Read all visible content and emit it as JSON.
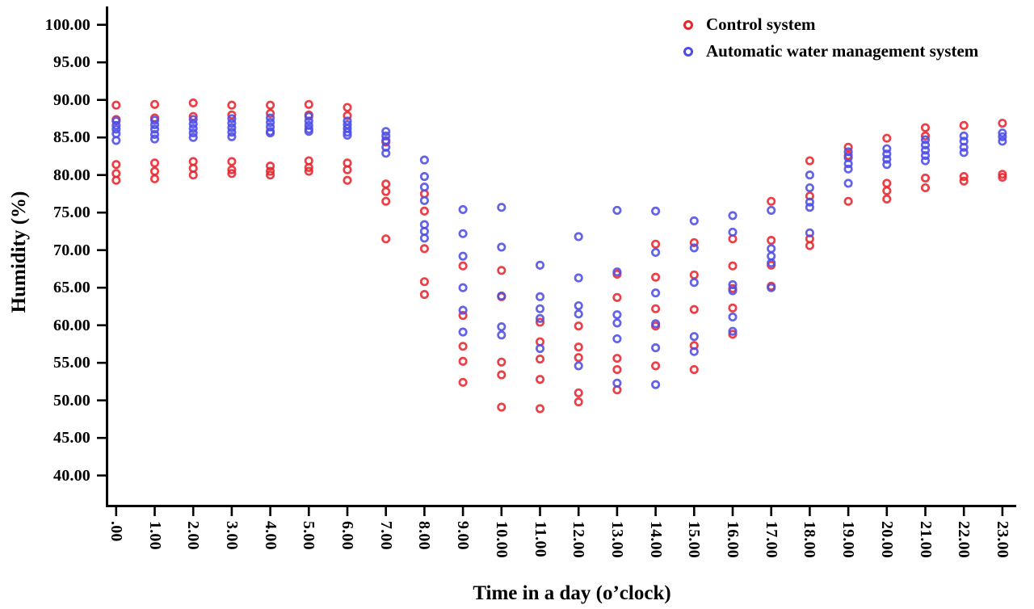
{
  "legend": {
    "items": [
      {
        "label": "Control system",
        "marker": "circle-outline-icon",
        "color": "#e8252d"
      },
      {
        "label": "Automatic water management system",
        "marker": "circle-outline-icon",
        "color": "#4d4de6"
      }
    ]
  },
  "axes": {
    "y": {
      "title": "Humidity (%)",
      "min": 40,
      "max": 100,
      "tick_values": [
        40,
        45,
        50,
        55,
        60,
        65,
        70,
        75,
        80,
        85,
        90,
        95,
        100
      ],
      "tick_labels": [
        "40.00",
        "45.00",
        "50.00",
        "55.00",
        "60.00",
        "65.00",
        "70.00",
        "75.00",
        "80.00",
        "85.00",
        "90.00",
        "95.00",
        "100.00"
      ]
    },
    "x": {
      "title": "Time in a day (o’clock)",
      "tick_labels": [
        ".00",
        "1.00",
        "2.00",
        "3.00",
        "4.00",
        "5.00",
        "6.00",
        "7.00",
        "8.00",
        "9.00",
        "10.00",
        "11.00",
        "12.00",
        "13.00",
        "14.00",
        "15.00",
        "16.00",
        "17.00",
        "18.00",
        "19.00",
        "20.00",
        "21.00",
        "22.00",
        "23.00"
      ]
    }
  },
  "chart_data": {
    "type": "scatter",
    "title": "",
    "xlabel": "Time in a day (o’clock)",
    "ylabel": "Humidity (%)",
    "ylim": [
      40,
      100
    ],
    "y_tick_step": 5,
    "grid": false,
    "legend_position": "top-right",
    "marker_style": "hollow-circle",
    "x_categories_hours": [
      0,
      1,
      2,
      3,
      4,
      5,
      6,
      7,
      8,
      9,
      10,
      11,
      12,
      13,
      14,
      15,
      16,
      17,
      18,
      19,
      20,
      21,
      22,
      23
    ],
    "series": [
      {
        "name": "Control system",
        "color": "#e8252d",
        "points": [
          [
            0,
            89.3
          ],
          [
            0,
            87.4
          ],
          [
            0,
            81.4
          ],
          [
            0,
            80.2
          ],
          [
            0,
            79.3
          ],
          [
            1,
            89.4
          ],
          [
            1,
            87.6
          ],
          [
            1,
            81.6
          ],
          [
            1,
            80.5
          ],
          [
            1,
            79.5
          ],
          [
            2,
            89.6
          ],
          [
            2,
            87.8
          ],
          [
            2,
            81.8
          ],
          [
            2,
            80.9
          ],
          [
            2,
            80.0
          ],
          [
            3,
            89.3
          ],
          [
            3,
            88.0
          ],
          [
            3,
            81.8
          ],
          [
            3,
            80.7
          ],
          [
            3,
            80.2
          ],
          [
            4,
            89.3
          ],
          [
            4,
            88.2
          ],
          [
            4,
            81.2
          ],
          [
            4,
            80.5
          ],
          [
            4,
            80.0
          ],
          [
            5,
            89.4
          ],
          [
            5,
            88.0
          ],
          [
            5,
            81.9
          ],
          [
            5,
            81.0
          ],
          [
            5,
            80.5
          ],
          [
            6,
            89.0
          ],
          [
            6,
            87.9
          ],
          [
            6,
            81.6
          ],
          [
            6,
            80.7
          ],
          [
            6,
            79.3
          ],
          [
            7,
            84.4
          ],
          [
            7,
            78.8
          ],
          [
            7,
            77.8
          ],
          [
            7,
            76.5
          ],
          [
            7,
            71.5
          ],
          [
            8,
            77.5
          ],
          [
            8,
            75.2
          ],
          [
            8,
            70.2
          ],
          [
            8,
            65.8
          ],
          [
            8,
            64.1
          ],
          [
            9,
            67.9
          ],
          [
            9,
            61.3
          ],
          [
            9,
            57.2
          ],
          [
            9,
            55.2
          ],
          [
            9,
            52.4
          ],
          [
            10,
            67.3
          ],
          [
            10,
            63.8
          ],
          [
            10,
            55.1
          ],
          [
            10,
            53.4
          ],
          [
            10,
            49.1
          ],
          [
            11,
            60.4
          ],
          [
            11,
            57.8
          ],
          [
            11,
            55.5
          ],
          [
            11,
            52.8
          ],
          [
            11,
            48.9
          ],
          [
            12,
            59.9
          ],
          [
            12,
            57.1
          ],
          [
            12,
            55.7
          ],
          [
            12,
            51.0
          ],
          [
            12,
            49.8
          ],
          [
            13,
            66.8
          ],
          [
            13,
            63.7
          ],
          [
            13,
            55.6
          ],
          [
            13,
            54.1
          ],
          [
            13,
            51.4
          ],
          [
            14,
            70.8
          ],
          [
            14,
            66.4
          ],
          [
            14,
            62.2
          ],
          [
            14,
            59.9
          ],
          [
            14,
            54.6
          ],
          [
            15,
            71.0
          ],
          [
            15,
            66.7
          ],
          [
            15,
            62.1
          ],
          [
            15,
            57.3
          ],
          [
            15,
            54.1
          ],
          [
            16,
            71.5
          ],
          [
            16,
            67.9
          ],
          [
            16,
            64.9
          ],
          [
            16,
            62.3
          ],
          [
            16,
            58.8
          ],
          [
            17,
            76.5
          ],
          [
            17,
            71.3
          ],
          [
            17,
            68.0
          ],
          [
            17,
            65.2
          ],
          [
            18,
            81.9
          ],
          [
            18,
            77.2
          ],
          [
            18,
            71.5
          ],
          [
            18,
            70.6
          ],
          [
            19,
            83.7
          ],
          [
            19,
            82.6
          ],
          [
            19,
            76.5
          ],
          [
            20,
            84.9
          ],
          [
            20,
            78.9
          ],
          [
            20,
            77.9
          ],
          [
            20,
            76.8
          ],
          [
            21,
            86.3
          ],
          [
            21,
            85.2
          ],
          [
            21,
            79.6
          ],
          [
            21,
            78.3
          ],
          [
            22,
            86.6
          ],
          [
            22,
            79.8
          ],
          [
            22,
            79.2
          ],
          [
            23,
            86.9
          ],
          [
            23,
            80.1
          ],
          [
            23,
            79.7
          ]
        ]
      },
      {
        "name": "Automatic water management system",
        "color": "#4d4de6",
        "points": [
          [
            0,
            87.2
          ],
          [
            0,
            86.6
          ],
          [
            0,
            86.1
          ],
          [
            0,
            85.5
          ],
          [
            0,
            84.6
          ],
          [
            1,
            87.3
          ],
          [
            1,
            86.7
          ],
          [
            1,
            86.1
          ],
          [
            1,
            85.4
          ],
          [
            1,
            84.8
          ],
          [
            2,
            87.4
          ],
          [
            2,
            86.8
          ],
          [
            2,
            86.2
          ],
          [
            2,
            85.6
          ],
          [
            2,
            85.0
          ],
          [
            3,
            87.5
          ],
          [
            3,
            86.9
          ],
          [
            3,
            86.3
          ],
          [
            3,
            85.7
          ],
          [
            3,
            85.1
          ],
          [
            4,
            87.6
          ],
          [
            4,
            87.0
          ],
          [
            4,
            86.4
          ],
          [
            4,
            85.8
          ],
          [
            4,
            85.6
          ],
          [
            5,
            87.8
          ],
          [
            5,
            87.2
          ],
          [
            5,
            86.6
          ],
          [
            5,
            86.1
          ],
          [
            5,
            85.8
          ],
          [
            6,
            87.2
          ],
          [
            6,
            86.7
          ],
          [
            6,
            86.2
          ],
          [
            6,
            85.7
          ],
          [
            6,
            85.3
          ],
          [
            7,
            85.8
          ],
          [
            7,
            85.2
          ],
          [
            7,
            84.6
          ],
          [
            7,
            83.7
          ],
          [
            7,
            82.9
          ],
          [
            8,
            82.0
          ],
          [
            8,
            79.8
          ],
          [
            8,
            78.4
          ],
          [
            8,
            76.6
          ],
          [
            8,
            73.4
          ],
          [
            8,
            72.5
          ],
          [
            8,
            71.6
          ],
          [
            9,
            75.4
          ],
          [
            9,
            72.2
          ],
          [
            9,
            69.2
          ],
          [
            9,
            65.0
          ],
          [
            9,
            62.0
          ],
          [
            9,
            59.1
          ],
          [
            10,
            75.7
          ],
          [
            10,
            70.4
          ],
          [
            10,
            63.9
          ],
          [
            10,
            59.8
          ],
          [
            10,
            58.7
          ],
          [
            11,
            68.0
          ],
          [
            11,
            63.8
          ],
          [
            11,
            62.2
          ],
          [
            11,
            60.9
          ],
          [
            11,
            56.9
          ],
          [
            12,
            71.8
          ],
          [
            12,
            66.3
          ],
          [
            12,
            62.6
          ],
          [
            12,
            61.5
          ],
          [
            12,
            54.6
          ],
          [
            13,
            75.3
          ],
          [
            13,
            67.1
          ],
          [
            13,
            61.4
          ],
          [
            13,
            60.3
          ],
          [
            13,
            58.2
          ],
          [
            13,
            52.3
          ],
          [
            14,
            75.2
          ],
          [
            14,
            69.7
          ],
          [
            14,
            64.3
          ],
          [
            14,
            60.2
          ],
          [
            14,
            57.0
          ],
          [
            14,
            52.1
          ],
          [
            15,
            73.9
          ],
          [
            15,
            70.3
          ],
          [
            15,
            65.7
          ],
          [
            15,
            58.5
          ],
          [
            15,
            56.5
          ],
          [
            16,
            74.6
          ],
          [
            16,
            72.4
          ],
          [
            16,
            65.4
          ],
          [
            16,
            64.6
          ],
          [
            16,
            61.1
          ],
          [
            16,
            59.2
          ],
          [
            17,
            75.3
          ],
          [
            17,
            70.2
          ],
          [
            17,
            69.2
          ],
          [
            17,
            68.3
          ],
          [
            17,
            65.0
          ],
          [
            18,
            80.0
          ],
          [
            18,
            78.3
          ],
          [
            18,
            76.4
          ],
          [
            18,
            75.7
          ],
          [
            18,
            72.3
          ],
          [
            19,
            83.1
          ],
          [
            19,
            82.3
          ],
          [
            19,
            81.5
          ],
          [
            19,
            80.8
          ],
          [
            19,
            78.9
          ],
          [
            20,
            83.5
          ],
          [
            20,
            82.8
          ],
          [
            20,
            82.1
          ],
          [
            20,
            81.4
          ],
          [
            21,
            84.7
          ],
          [
            21,
            84.0
          ],
          [
            21,
            83.3
          ],
          [
            21,
            82.6
          ],
          [
            21,
            81.9
          ],
          [
            22,
            85.2
          ],
          [
            22,
            84.5
          ],
          [
            22,
            83.7
          ],
          [
            22,
            83.0
          ],
          [
            23,
            85.6
          ],
          [
            23,
            85.1
          ],
          [
            23,
            84.5
          ]
        ]
      }
    ]
  }
}
